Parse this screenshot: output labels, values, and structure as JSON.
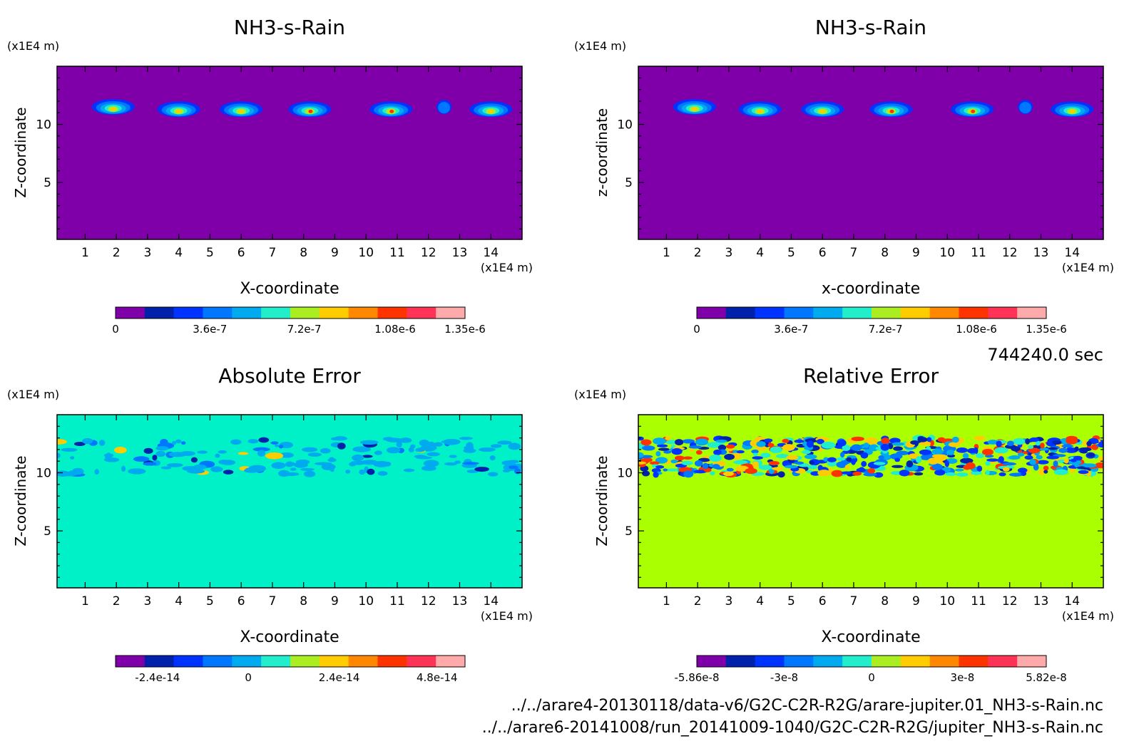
{
  "figure": {
    "time_label": "744240.0 sec",
    "file_line_1": "../../arare4-20130118/data-v6/G2C-C2R-R2G/arare-jupiter.01_NH3-s-Rain.nc",
    "file_line_2": "../../arare6-20141008/run_20141009-1040/G2C-C2R-R2G/jupiter_NH3-s-Rain.nc"
  },
  "chart_data": [
    {
      "type": "heatmap",
      "title": "NH3-s-Rain",
      "xlabel": "X-coordinate",
      "ylabel": "Z-coordinate",
      "x_unit": "(x1E4 m)",
      "y_unit": "(x1E4 m)",
      "x_ticks": [
        "1",
        "2",
        "3",
        "4",
        "5",
        "6",
        "7",
        "8",
        "9",
        "10",
        "11",
        "12",
        "13",
        "14"
      ],
      "y_ticks": [
        "5",
        "10"
      ],
      "xlim": [
        0.1,
        15.0
      ],
      "ylim": [
        0.1,
        15.0
      ],
      "background": "#7f00a9",
      "colorbar_colors": [
        "#7f00a9",
        "#0022aa",
        "#0033ff",
        "#0077ff",
        "#00aaee",
        "#22eecc",
        "#aaee22",
        "#ffcc00",
        "#ff8800",
        "#ff3300",
        "#ff3355",
        "#ffaaaa"
      ],
      "colorbar_labels": [
        "0",
        "3.6e-7",
        "7.2e-7",
        "1.08e-6",
        "1.35e-6"
      ],
      "blobs": [
        {
          "x": 1.9,
          "z": 11.5
        },
        {
          "x": 4.0,
          "z": 11.3
        },
        {
          "x": 6.0,
          "z": 11.3
        },
        {
          "x": 8.2,
          "z": 11.3
        },
        {
          "x": 10.8,
          "z": 11.3
        },
        {
          "x": 12.5,
          "z": 11.5
        },
        {
          "x": 14.0,
          "z": 11.3
        }
      ]
    },
    {
      "type": "heatmap",
      "title": "NH3-s-Rain",
      "xlabel": "x-coordinate",
      "ylabel": "z-coordinate",
      "x_unit": "(x1E4 m)",
      "y_unit": "(x1E4 m)",
      "x_ticks": [
        "1",
        "2",
        "3",
        "4",
        "5",
        "6",
        "7",
        "8",
        "9",
        "10",
        "11",
        "12",
        "13",
        "14"
      ],
      "y_ticks": [
        "5",
        "10"
      ],
      "xlim": [
        0.1,
        15.0
      ],
      "ylim": [
        0.1,
        15.0
      ],
      "background": "#7f00a9",
      "colorbar_colors": [
        "#7f00a9",
        "#0022aa",
        "#0033ff",
        "#0077ff",
        "#00aaee",
        "#22eecc",
        "#aaee22",
        "#ffcc00",
        "#ff8800",
        "#ff3300",
        "#ff3355",
        "#ffaaaa"
      ],
      "colorbar_labels": [
        "0",
        "3.6e-7",
        "7.2e-7",
        "1.08e-6",
        "1.35e-6"
      ],
      "blobs": [
        {
          "x": 1.9,
          "z": 11.5
        },
        {
          "x": 4.0,
          "z": 11.3
        },
        {
          "x": 6.0,
          "z": 11.3
        },
        {
          "x": 8.2,
          "z": 11.3
        },
        {
          "x": 10.8,
          "z": 11.3
        },
        {
          "x": 12.5,
          "z": 11.5
        },
        {
          "x": 14.0,
          "z": 11.3
        }
      ]
    },
    {
      "type": "heatmap",
      "title": "Absolute Error",
      "xlabel": "X-coordinate",
      "ylabel": "Z-coordinate",
      "x_unit": "(x1E4 m)",
      "y_unit": "(x1E4 m)",
      "x_ticks": [
        "1",
        "2",
        "3",
        "4",
        "5",
        "6",
        "7",
        "8",
        "9",
        "10",
        "11",
        "12",
        "13",
        "14"
      ],
      "y_ticks": [
        "5",
        "10"
      ],
      "xlim": [
        0.1,
        15.0
      ],
      "ylim": [
        0.1,
        15.0
      ],
      "background": "#00f0c8",
      "noise_band_z": [
        9.8,
        13.0
      ],
      "colorbar_colors": [
        "#7f00a9",
        "#0022aa",
        "#0033ff",
        "#0077ff",
        "#00aaee",
        "#22eecc",
        "#aaee22",
        "#ffcc00",
        "#ff8800",
        "#ff3300",
        "#ff3355",
        "#ffaaaa"
      ],
      "colorbar_labels": [
        "-2.4e-14",
        "0",
        "2.4e-14",
        "4.8e-14"
      ]
    },
    {
      "type": "heatmap",
      "title": "Relative Error",
      "xlabel": "X-coordinate",
      "ylabel": "Z-coordinate",
      "x_unit": "(x1E4 m)",
      "y_unit": "(x1E4 m)",
      "x_ticks": [
        "1",
        "2",
        "3",
        "4",
        "5",
        "6",
        "7",
        "8",
        "9",
        "10",
        "11",
        "12",
        "13",
        "14"
      ],
      "y_ticks": [
        "5",
        "10"
      ],
      "xlim": [
        0.1,
        15.0
      ],
      "ylim": [
        0.1,
        15.0
      ],
      "background": "#aaff00",
      "noise_band_z": [
        9.8,
        13.0
      ],
      "colorbar_colors": [
        "#7f00a9",
        "#0022aa",
        "#0033ff",
        "#0077ff",
        "#00aaee",
        "#22eecc",
        "#aaee22",
        "#ffcc00",
        "#ff8800",
        "#ff3300",
        "#ff3355",
        "#ffaaaa"
      ],
      "colorbar_labels": [
        "-5.86e-8",
        "-3e-8",
        "0",
        "3e-8",
        "5.82e-8"
      ]
    }
  ]
}
